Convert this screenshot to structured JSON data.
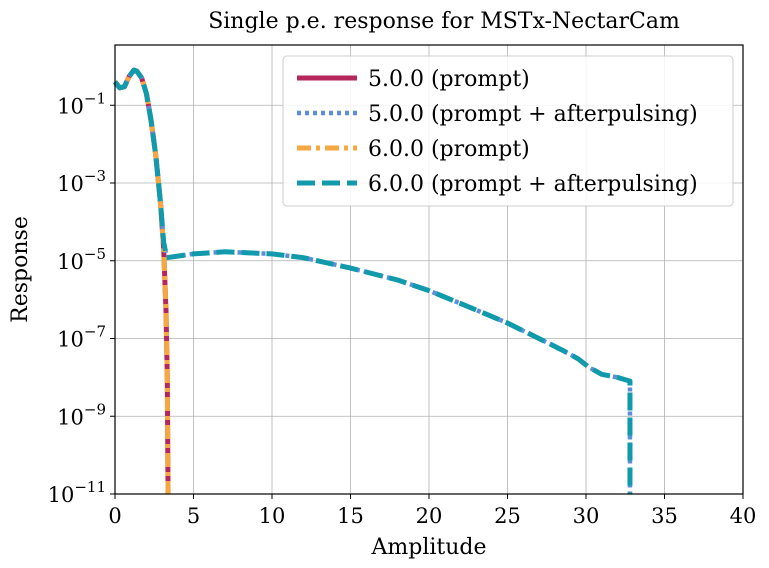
{
  "chart_data": {
    "type": "line",
    "title": "Single p.e. response for MSTx-NectarCam",
    "xlabel": "Amplitude",
    "ylabel": "Response",
    "xlim": [
      0,
      40
    ],
    "ylim_log10": [
      -11,
      0.55
    ],
    "yscale": "log",
    "grid": true,
    "legend_position": "top-right",
    "x_ticks": [
      0,
      5,
      10,
      15,
      20,
      25,
      30,
      35,
      40
    ],
    "y_ticks": [
      {
        "exp": -11,
        "base": "10",
        "sup": "−11"
      },
      {
        "exp": -9,
        "base": "10",
        "sup": "−9"
      },
      {
        "exp": -7,
        "base": "10",
        "sup": "−7"
      },
      {
        "exp": -5,
        "base": "10",
        "sup": "−5"
      },
      {
        "exp": -3,
        "base": "10",
        "sup": "−3"
      },
      {
        "exp": -1,
        "base": "10",
        "sup": "−1"
      }
    ],
    "series": [
      {
        "name": "5.0.0 (prompt)",
        "color": "#b5265a",
        "dash": "solid",
        "points": [
          [
            0,
            0.4
          ],
          [
            0.3,
            0.28
          ],
          [
            0.6,
            0.3
          ],
          [
            0.9,
            0.55
          ],
          [
            1.2,
            0.8
          ],
          [
            1.4,
            0.75
          ],
          [
            1.7,
            0.5
          ],
          [
            2.0,
            0.2
          ],
          [
            2.3,
            0.04
          ],
          [
            2.6,
            0.005
          ],
          [
            2.9,
            0.0003
          ],
          [
            3.1,
            2e-05
          ],
          [
            3.25,
            5e-07
          ],
          [
            3.33,
            1e-08
          ],
          [
            3.38,
            1e-11
          ]
        ]
      },
      {
        "name": "5.0.0 (prompt + afterpulsing)",
        "color": "#5b8fd8",
        "dash": "dotted",
        "points": [
          [
            0,
            0.4
          ],
          [
            0.3,
            0.28
          ],
          [
            0.6,
            0.3
          ],
          [
            0.9,
            0.55
          ],
          [
            1.2,
            0.8
          ],
          [
            1.4,
            0.75
          ],
          [
            1.7,
            0.5
          ],
          [
            2.0,
            0.2
          ],
          [
            2.3,
            0.04
          ],
          [
            2.6,
            0.005
          ],
          [
            2.9,
            0.0003
          ],
          [
            3.1,
            3e-05
          ],
          [
            3.3,
            1.2e-05
          ],
          [
            5,
            1.5e-05
          ],
          [
            7,
            1.7e-05
          ],
          [
            10,
            1.5e-05
          ],
          [
            12,
            1.2e-05
          ],
          [
            15,
            6.5e-06
          ],
          [
            18,
            3.2e-06
          ],
          [
            20,
            1.7e-06
          ],
          [
            22,
            8e-07
          ],
          [
            25,
            2.5e-07
          ],
          [
            27,
            1e-07
          ],
          [
            28.5,
            5e-08
          ],
          [
            29.5,
            3e-08
          ],
          [
            30.2,
            1.8e-08
          ],
          [
            31,
            1.2e-08
          ],
          [
            32,
            1e-08
          ],
          [
            32.8,
            8e-09
          ],
          [
            32.8,
            1e-11
          ]
        ]
      },
      {
        "name": "6.0.0 (prompt)",
        "color": "#f5a742",
        "dash": "dashdot",
        "points": [
          [
            0,
            0.4
          ],
          [
            0.3,
            0.28
          ],
          [
            0.6,
            0.3
          ],
          [
            0.9,
            0.55
          ],
          [
            1.2,
            0.8
          ],
          [
            1.4,
            0.75
          ],
          [
            1.7,
            0.5
          ],
          [
            2.0,
            0.2
          ],
          [
            2.3,
            0.04
          ],
          [
            2.6,
            0.005
          ],
          [
            2.9,
            0.0003
          ],
          [
            3.1,
            2e-05
          ],
          [
            3.25,
            5e-07
          ],
          [
            3.33,
            1e-08
          ],
          [
            3.38,
            1e-11
          ]
        ]
      },
      {
        "name": "6.0.0 (prompt + afterpulsing)",
        "color": "#109aac",
        "dash": "dashed",
        "points": [
          [
            0,
            0.4
          ],
          [
            0.3,
            0.28
          ],
          [
            0.6,
            0.3
          ],
          [
            0.9,
            0.55
          ],
          [
            1.2,
            0.8
          ],
          [
            1.4,
            0.75
          ],
          [
            1.7,
            0.5
          ],
          [
            2.0,
            0.2
          ],
          [
            2.3,
            0.04
          ],
          [
            2.6,
            0.005
          ],
          [
            2.9,
            0.0003
          ],
          [
            3.1,
            3e-05
          ],
          [
            3.3,
            1.2e-05
          ],
          [
            5,
            1.5e-05
          ],
          [
            7,
            1.7e-05
          ],
          [
            10,
            1.5e-05
          ],
          [
            12,
            1.2e-05
          ],
          [
            15,
            6.5e-06
          ],
          [
            18,
            3.2e-06
          ],
          [
            20,
            1.7e-06
          ],
          [
            22,
            8e-07
          ],
          [
            25,
            2.5e-07
          ],
          [
            27,
            1e-07
          ],
          [
            28.5,
            5e-08
          ],
          [
            29.5,
            3e-08
          ],
          [
            30.2,
            1.8e-08
          ],
          [
            31,
            1.2e-08
          ],
          [
            32,
            1e-08
          ],
          [
            32.8,
            8e-09
          ],
          [
            32.8,
            1e-11
          ]
        ]
      }
    ]
  }
}
